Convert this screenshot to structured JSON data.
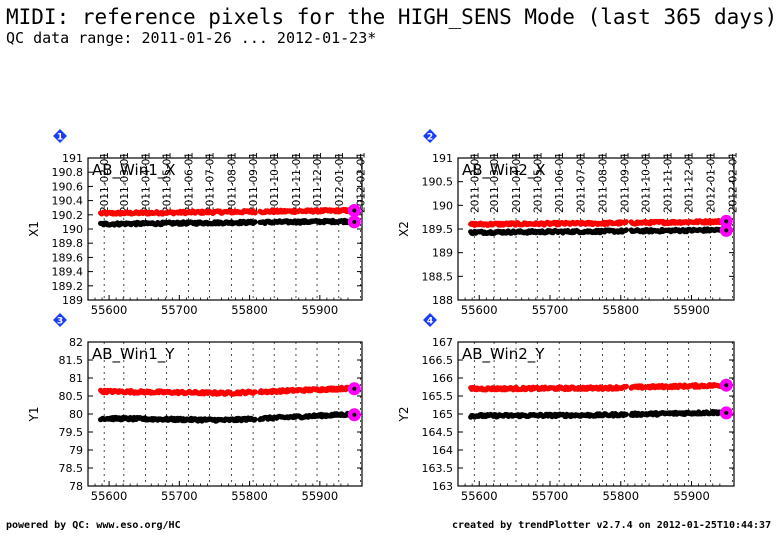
{
  "title": "MIDI: reference pixels for the HIGH_SENS Mode (last 365 days)",
  "subtitle": "QC data range: 2011-01-26 ... 2012-01-23*",
  "footer": {
    "left": "powered by QC: www.eso.org/HC",
    "right": "created by trendPlotter v2.7.4 on 2012-01-25T10:44:37"
  },
  "colors": {
    "series_upper": "#ff0000",
    "series_lower": "#000000",
    "latest_marker": "#ff00ff",
    "badge": "#1a3cff"
  },
  "date_ticks": [
    "2011-02-01",
    "2011-03-01",
    "2011-04-01",
    "2011-05-01",
    "2011-06-01",
    "2011-07-01",
    "2011-08-01",
    "2011-09-01",
    "2011-10-01",
    "2011-11-01",
    "2011-12-01",
    "2012-01-01",
    "2012-02-01"
  ],
  "chart_data": [
    {
      "type": "scatter",
      "badge": "1",
      "panel_label": "AB_Win1_X",
      "ylabel": "X1",
      "xlim": [
        55570,
        55960
      ],
      "ylim": [
        189,
        191
      ],
      "xticks": [
        55600,
        55700,
        55800,
        55900
      ],
      "yticks": [
        189,
        189.2,
        189.4,
        189.6,
        189.8,
        190,
        190.2,
        190.4,
        190.6,
        190.8,
        191
      ],
      "x_range": [
        55588,
        55949
      ],
      "series": [
        {
          "color": "red",
          "values_level": [
            190.22,
            190.24,
            190.26
          ],
          "latest": 190.26
        },
        {
          "color": "black",
          "values_level": [
            190.07,
            190.09,
            190.11
          ],
          "latest": 190.1
        }
      ]
    },
    {
      "type": "scatter",
      "badge": "2",
      "panel_label": "AB_Win2_X",
      "ylabel": "X2",
      "xlim": [
        55570,
        55960
      ],
      "ylim": [
        188,
        191
      ],
      "xticks": [
        55600,
        55700,
        55800,
        55900
      ],
      "yticks": [
        188,
        188.5,
        189,
        189.5,
        190,
        190.5,
        191
      ],
      "x_range": [
        55588,
        55949
      ],
      "series": [
        {
          "color": "red",
          "values_level": [
            189.6,
            189.62,
            189.66
          ],
          "latest": 189.66
        },
        {
          "color": "black",
          "values_level": [
            189.43,
            189.45,
            189.48
          ],
          "latest": 189.47
        }
      ]
    },
    {
      "type": "scatter",
      "badge": "3",
      "panel_label": "AB_Win1_Y",
      "ylabel": "Y1",
      "xlim": [
        55570,
        55960
      ],
      "ylim": [
        78,
        82
      ],
      "xticks": [
        55600,
        55700,
        55800,
        55900
      ],
      "yticks": [
        78,
        78.5,
        79,
        79.5,
        80,
        80.5,
        81,
        81.5,
        82
      ],
      "x_range": [
        55588,
        55949
      ],
      "series": [
        {
          "color": "red",
          "values_level": [
            80.63,
            80.58,
            80.72
          ],
          "latest": 80.7
        },
        {
          "color": "black",
          "values_level": [
            79.88,
            79.83,
            80.0
          ],
          "latest": 79.98
        }
      ]
    },
    {
      "type": "scatter",
      "badge": "4",
      "panel_label": "AB_Win2_Y",
      "ylabel": "Y2",
      "xlim": [
        55570,
        55960
      ],
      "ylim": [
        163,
        167
      ],
      "xticks": [
        55600,
        55700,
        55800,
        55900
      ],
      "yticks": [
        163,
        163.5,
        164,
        164.5,
        165,
        165.5,
        166,
        166.5,
        167
      ],
      "x_range": [
        55588,
        55949
      ],
      "series": [
        {
          "color": "red",
          "values_level": [
            165.7,
            165.72,
            165.8
          ],
          "latest": 165.8
        },
        {
          "color": "black",
          "values_level": [
            164.95,
            164.97,
            165.05
          ],
          "latest": 165.03
        }
      ]
    }
  ]
}
